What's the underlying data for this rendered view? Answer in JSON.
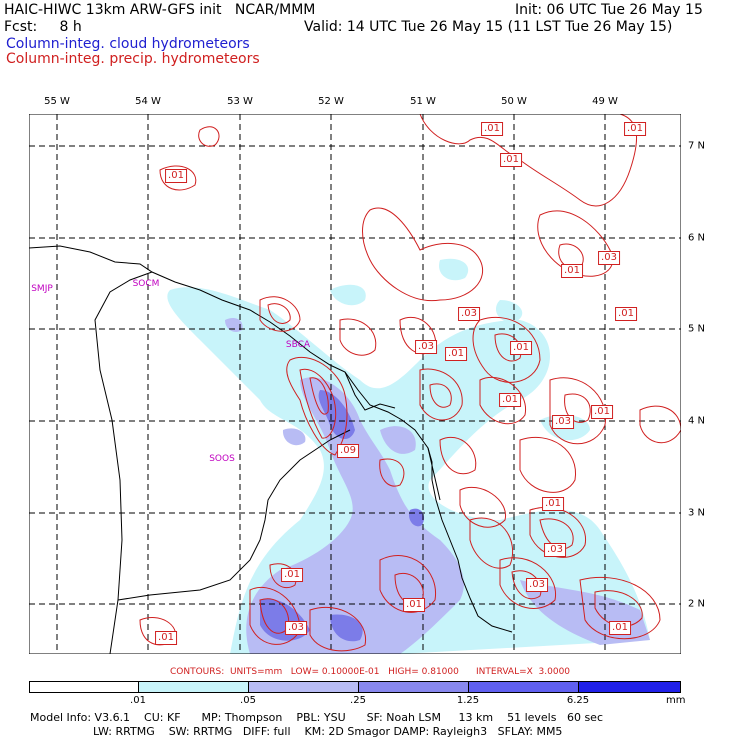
{
  "header": {
    "title": "HAIC-HIWC 13km ARW-GFS init   NCAR/MMM",
    "init": "Init: 06 UTC Tue 26 May 15",
    "fcst": "Fcst:     8 h",
    "valid": "Valid: 14 UTC Tue 26 May 15 (11 LST Tue 26 May 15)",
    "field1": "Column-integ. cloud hydrometeors",
    "field2": "Column-integ. precip. hydrometeors"
  },
  "axes": {
    "lon_labels": [
      "55 W",
      "54 W",
      "53 W",
      "52 W",
      "51 W",
      "50 W",
      "49 W"
    ],
    "lat_labels": [
      "7 N",
      "6 N",
      "5 N",
      "4 N",
      "3 N",
      "2 N"
    ]
  },
  "stations": [
    "SMJP",
    "SOCM",
    "SBCA",
    "SOOS"
  ],
  "contour_labels": [
    ".01",
    ".01",
    ".01",
    ".01",
    ".03",
    ".01",
    ".01",
    ".03",
    ".01",
    ".01",
    ".03",
    ".01",
    ".01",
    ".03",
    ".09",
    ".01",
    ".03",
    ".03",
    ".01",
    ".01",
    ".03",
    ".01",
    ".01"
  ],
  "contour_note": "CONTOURS:  UNITS=mm   LOW= 0.10000E-01   HIGH= 0.81000      INTERVAL=X  3.0000",
  "colorbar": {
    "ticks": [
      ".01",
      ".05",
      ".25",
      "1.25",
      "6.25"
    ],
    "unit": "mm",
    "colors": [
      "#ffffff",
      "#c8f4fa",
      "#b8bcf4",
      "#8888ee",
      "#6060f0",
      "#2020e8"
    ]
  },
  "model_info": {
    "line1": "Model Info: V3.6.1    CU: KF      MP: Thompson    PBL: YSU      SF: Noah LSM     13 km    51 levels   60 sec",
    "line2": "                  LW: RRTMG    SW: RRTMG   DIFF: full    KM: 2D Smagor DAMP: Rayleigh3   SFLAY: MM5"
  }
}
